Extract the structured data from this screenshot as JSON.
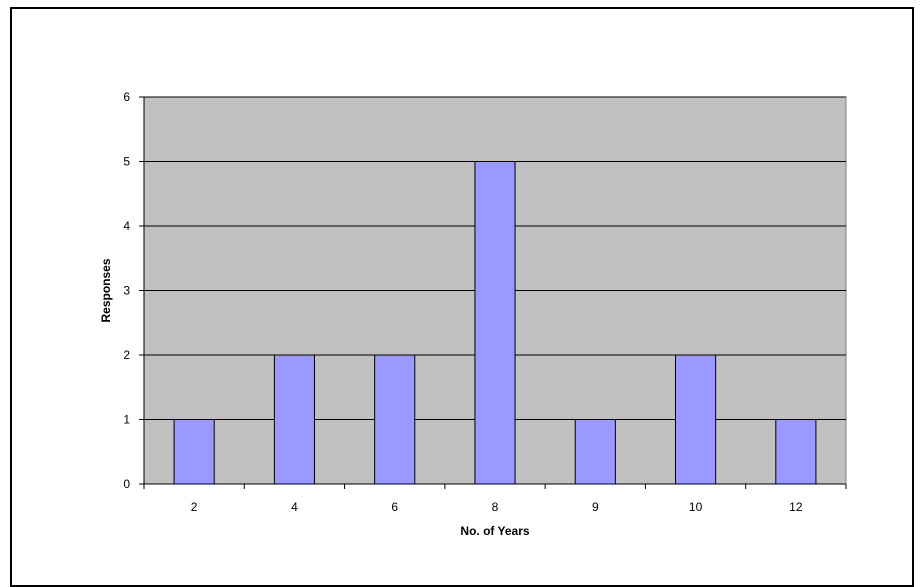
{
  "chart_data": {
    "type": "bar",
    "categories": [
      "2",
      "4",
      "6",
      "8",
      "9",
      "10",
      "12"
    ],
    "values": [
      1,
      2,
      2,
      5,
      1,
      2,
      1
    ],
    "xlabel": "No. of Years",
    "ylabel": "Responses",
    "ylim": [
      0,
      6
    ],
    "yticks": [
      "0",
      "1",
      "2",
      "3",
      "4",
      "5",
      "6"
    ],
    "grid": true,
    "legend": "none",
    "colors": {
      "bar_fill": "#9999ff",
      "bar_stroke": "#000000",
      "plot_background": "#c0c0c0",
      "gridline": "#000000"
    }
  }
}
